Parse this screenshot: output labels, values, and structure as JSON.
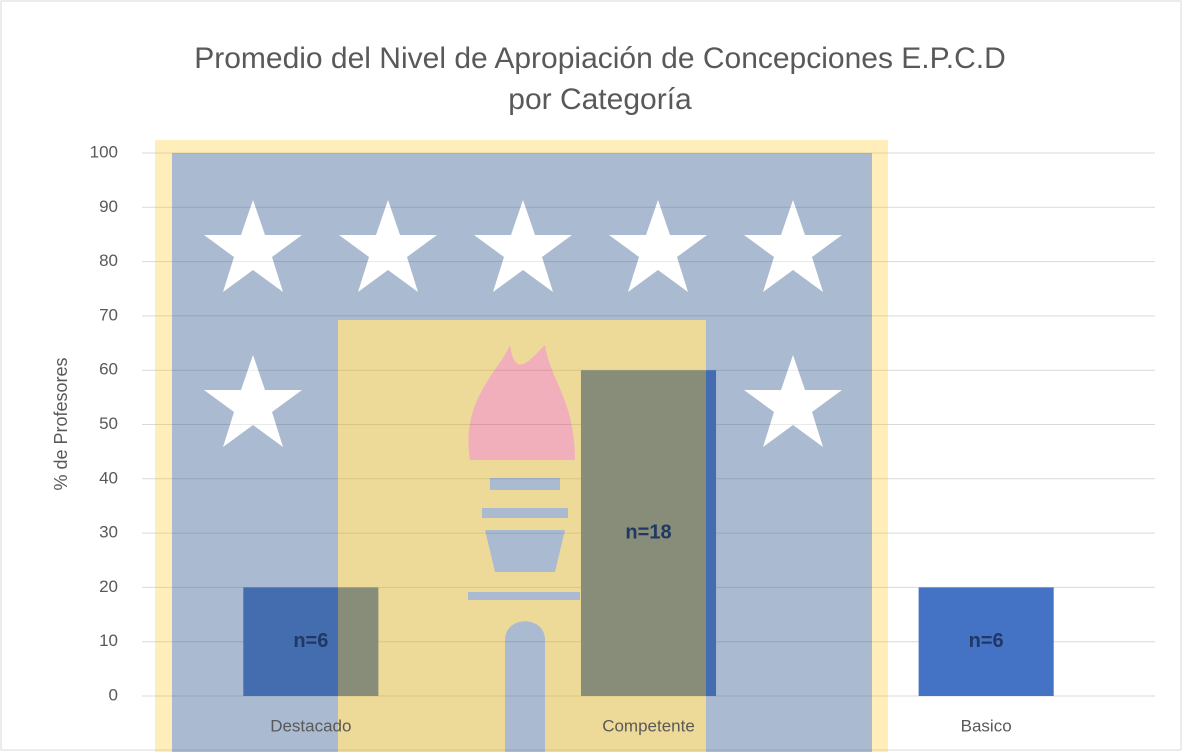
{
  "chart_data": {
    "type": "bar",
    "title": [
      "Promedio del Nivel de Apropiación de Concepciones E.P.C.D",
      "por Categoría"
    ],
    "y_label": "% de Profesores",
    "categories": [
      "Destacado",
      "Competente",
      "Basico"
    ],
    "values": [
      20,
      60,
      20
    ],
    "bar_labels": [
      "n=6",
      "n=18",
      "n=6"
    ],
    "color": "#4472c4",
    "ylim": [
      0,
      100
    ],
    "yticks": [
      0,
      10,
      20,
      30,
      40,
      50,
      60,
      70,
      80,
      90,
      100
    ],
    "grid": true
  }
}
